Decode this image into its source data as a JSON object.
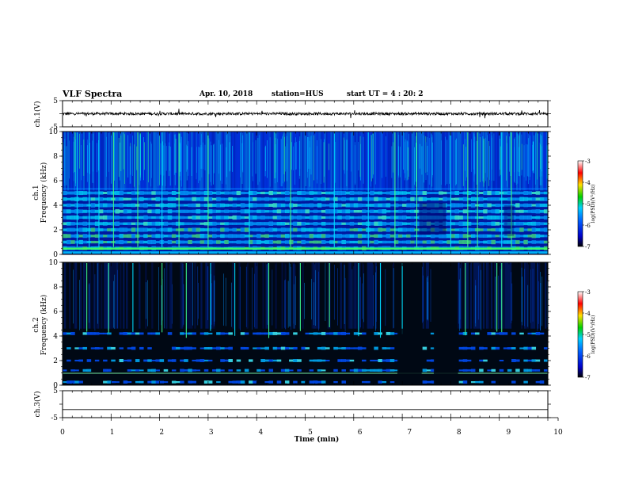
{
  "header": {
    "title": "VLF Spectra",
    "date": "Apr. 10, 2018",
    "station": "station=HUS",
    "start": "start  UT =   4 : 20: 2"
  },
  "colorbar": {
    "label": "log(PSD)(V²/Hz)",
    "ticks": [
      "-3",
      "-4",
      "-5",
      "-6",
      "-7"
    ],
    "colors": [
      "#ffffff",
      "#ff0000",
      "#ffe000",
      "#00d000",
      "#00c8ff",
      "#0000d0",
      "#000000"
    ]
  },
  "chart_data": [
    {
      "type": "line",
      "panel": "ch1-waveform",
      "ylabel": "ch.1(V)",
      "ylim": [
        -5,
        5
      ],
      "yticks": [
        "5",
        "-5"
      ],
      "baseline": 0,
      "xlim": [
        0,
        10
      ],
      "color": "#000000"
    },
    {
      "type": "heatmap",
      "panel": "ch1-spectrogram",
      "ylabel_top": "ch.1",
      "ylabel": "Frequency (kHz)",
      "ylim": [
        0,
        10
      ],
      "yticks": [
        "0",
        "2",
        "4",
        "6",
        "8",
        "10"
      ],
      "xlim": [
        0,
        10
      ],
      "clim": [
        -7,
        -3
      ],
      "bands_khz": [
        0.5,
        1.0,
        1.5,
        2.0,
        2.5,
        3.0,
        3.5,
        4.0,
        4.5,
        5.0
      ],
      "spikes_min": [
        0.3,
        0.55,
        0.75,
        1.05,
        1.55,
        2.05,
        2.4,
        3.0,
        3.85,
        4.7,
        5.6,
        6.3,
        6.85,
        7.3,
        8.0,
        8.35,
        8.55,
        9.05,
        9.25
      ]
    },
    {
      "type": "heatmap",
      "panel": "ch2-spectrogram",
      "ylabel_top": "ch.2",
      "ylabel": "Frequency (kHz)",
      "ylim": [
        0,
        10
      ],
      "yticks": [
        "0",
        "2",
        "4",
        "6",
        "8",
        "10"
      ],
      "xlim": [
        0,
        10
      ],
      "clim": [
        -7,
        -3
      ],
      "bands_khz": [
        0.25,
        1.2,
        2.0,
        3.0,
        4.2
      ],
      "quiet_min": [
        [
          6.9,
          7.4
        ],
        [
          7.65,
          8.15
        ]
      ],
      "spikes_min": [
        0.5,
        0.95,
        1.45,
        2.05,
        2.55,
        3.05,
        3.55,
        4.25,
        4.9,
        5.5,
        6.1,
        6.55,
        7.0,
        8.3,
        8.95,
        9.05
      ]
    },
    {
      "type": "line",
      "panel": "ch3-waveform",
      "ylabel": "ch.3(V)",
      "ylim": [
        -5,
        5
      ],
      "yticks": [
        "5",
        "-5"
      ],
      "baseline": -2,
      "xlim": [
        0,
        10
      ],
      "color": "#000000"
    }
  ],
  "xaxis": {
    "label": "Time (min)",
    "ticks": [
      "0",
      "1",
      "2",
      "3",
      "4",
      "5",
      "6",
      "7",
      "8",
      "9",
      "10"
    ],
    "range": [
      0,
      10
    ]
  }
}
